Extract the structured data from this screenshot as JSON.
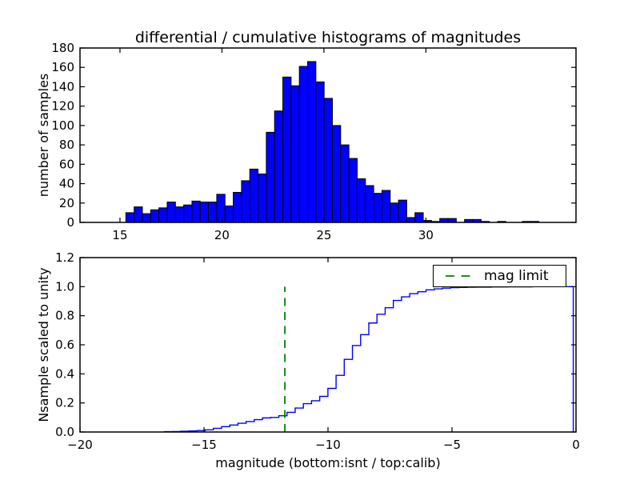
{
  "figure_title": "differential / cumulative histograms of magnitudes",
  "chart_data": [
    {
      "type": "bar",
      "subplot": "top",
      "title": "differential / cumulative histograms of magnitudes",
      "xlabel": "",
      "ylabel": "number of samples",
      "xlim": [
        13.04,
        37.36
      ],
      "ylim": [
        0,
        180
      ],
      "xticks": [
        15,
        20,
        25,
        30
      ],
      "xtick_labels": [
        "15",
        "20",
        "25",
        "30"
      ],
      "yticks": [
        0,
        20,
        40,
        60,
        80,
        100,
        120,
        140,
        160,
        180
      ],
      "ytick_labels": [
        "0",
        "20",
        "40",
        "60",
        "80",
        "100",
        "120",
        "140",
        "160",
        "180"
      ],
      "grid": false,
      "bin_start": 15.29,
      "bin_width": 0.405,
      "counts": [
        10,
        16,
        9,
        13,
        15,
        21,
        16,
        18,
        22,
        21,
        21,
        29,
        17,
        31,
        43,
        55,
        50,
        93,
        115,
        150,
        141,
        161,
        166,
        145,
        128,
        100,
        80,
        66,
        45,
        38,
        30,
        33,
        20,
        23,
        5,
        10,
        2,
        1,
        4,
        4,
        0,
        3,
        3,
        1,
        0,
        1,
        0,
        0,
        1,
        1
      ],
      "bar_color": "#0000ff",
      "bar_edge_color": "#000000"
    },
    {
      "type": "line",
      "style": "cumulative-step-histogram",
      "subplot": "bottom",
      "title": "",
      "xlabel": "magnitude (bottom:isnt / top:calib)",
      "ylabel": "Nsample scaled to unity",
      "xlim": [
        -20,
        0
      ],
      "ylim": [
        0,
        1.2
      ],
      "xticks": [
        -20,
        -15,
        -10,
        -5,
        0
      ],
      "xtick_labels": [
        "−20",
        "−15",
        "−10",
        "−5",
        "0"
      ],
      "yticks": [
        0.0,
        0.2,
        0.4,
        0.6,
        0.8,
        1.0,
        1.2
      ],
      "ytick_labels": [
        "0.0",
        "0.2",
        "0.4",
        "0.6",
        "0.8",
        "1.0",
        "1.2"
      ],
      "grid": false,
      "bin_start": -16.6,
      "bin_width": 0.3298,
      "cumulative_fraction": [
        0.002,
        0.003,
        0.005,
        0.007,
        0.01,
        0.015,
        0.025,
        0.037,
        0.048,
        0.06,
        0.072,
        0.085,
        0.097,
        0.1,
        0.112,
        0.135,
        0.165,
        0.195,
        0.215,
        0.245,
        0.3,
        0.39,
        0.5,
        0.595,
        0.67,
        0.75,
        0.81,
        0.855,
        0.905,
        0.93,
        0.952,
        0.965,
        0.978,
        0.985,
        0.99,
        0.993,
        0.995,
        0.996,
        0.997,
        0.997,
        0.998,
        0.998,
        0.999,
        0.999,
        0.999,
        1.0,
        1.0,
        1.0,
        1.0,
        1.0
      ],
      "closes_to_zero_at_last_edge": true,
      "line_color": "#0000ff",
      "annotations": {
        "mag_limit_line": {
          "x": -11.74,
          "y_from": 0.0,
          "y_to": 1.0,
          "color": "#008000",
          "style": "dashed"
        }
      },
      "legend": {
        "label": "mag limit",
        "position": "upper right",
        "sample_color": "#008000"
      }
    }
  ]
}
